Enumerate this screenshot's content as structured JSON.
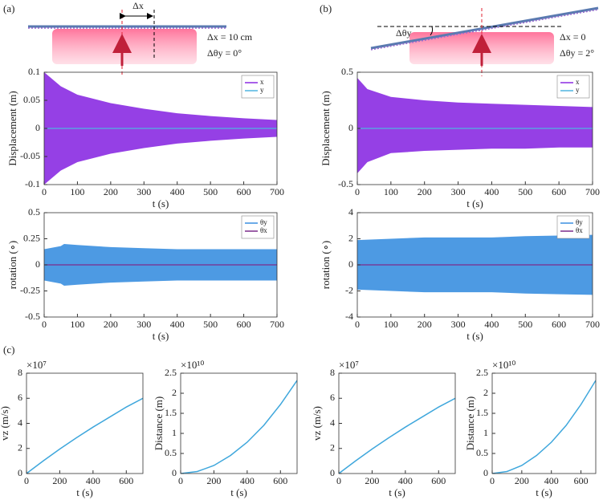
{
  "panels": {
    "a": {
      "label": "(a)",
      "delta": "Δx",
      "line1": "Δx  = 10 cm",
      "line2": "Δθy = 0°"
    },
    "b": {
      "label": "(b)",
      "angle": "Δθy",
      "line1": "Δx  = 0",
      "line2": "Δθy = 2°"
    },
    "c": {
      "label": "(c)"
    }
  },
  "chart_data": [
    {
      "type": "band",
      "ylabel": "Displacement (m)",
      "xlabel": "t (s)",
      "legend": "upper right",
      "x": [
        0,
        50,
        100,
        200,
        300,
        400,
        500,
        600,
        700
      ],
      "xlim": [
        0,
        700
      ],
      "xticks": [
        0,
        100,
        200,
        300,
        400,
        500,
        600,
        700
      ],
      "ylim": [
        -0.1,
        0.1
      ],
      "yticks": [
        -0.1,
        -0.05,
        0,
        0.05,
        0.1
      ],
      "series": [
        {
          "name": "x",
          "color": "#8a2be2",
          "values": [
            0.1,
            0.075,
            0.06,
            0.045,
            0.035,
            0.027,
            0.022,
            0.018,
            0.015
          ],
          "lower": [
            -0.1,
            -0.075,
            -0.06,
            -0.045,
            -0.035,
            -0.027,
            -0.022,
            -0.018,
            -0.015
          ]
        },
        {
          "name": "y",
          "color": "#4fb4e0",
          "values": [
            0,
            0,
            0,
            0,
            0,
            0,
            0,
            0,
            0
          ]
        }
      ]
    },
    {
      "type": "band",
      "ylabel": "Displacement (m)",
      "xlabel": "t (s)",
      "legend": "upper right",
      "x": [
        0,
        30,
        100,
        200,
        300,
        400,
        500,
        600,
        700
      ],
      "xlim": [
        0,
        700
      ],
      "xticks": [
        0,
        100,
        200,
        300,
        400,
        500,
        600,
        700
      ],
      "ylim": [
        -0.5,
        0.5
      ],
      "yticks": [
        -0.5,
        0,
        0.5
      ],
      "series": [
        {
          "name": "x",
          "color": "#8a2be2",
          "values": [
            0.45,
            0.35,
            0.28,
            0.25,
            0.23,
            0.22,
            0.21,
            0.2,
            0.19
          ],
          "lower": [
            -0.4,
            -0.3,
            -0.22,
            -0.2,
            -0.19,
            -0.18,
            -0.18,
            -0.17,
            -0.17
          ]
        },
        {
          "name": "y",
          "color": "#4fb4e0",
          "values": [
            0,
            0,
            0,
            0,
            0,
            0,
            0,
            0,
            0
          ]
        }
      ]
    },
    {
      "type": "band",
      "ylabel": "rotation (∘)",
      "xlabel": "t (s)",
      "legend": "upper right",
      "x": [
        0,
        50,
        60,
        100,
        200,
        300,
        400,
        500,
        600,
        700
      ],
      "xlim": [
        0,
        700
      ],
      "xticks": [
        0,
        100,
        200,
        300,
        400,
        500,
        600,
        700
      ],
      "ylim": [
        -0.5,
        0.5
      ],
      "yticks": [
        -0.5,
        -0.25,
        0,
        0.25,
        0.5
      ],
      "series": [
        {
          "name": "θy",
          "color": "#3a8fe0",
          "values": [
            0.15,
            0.18,
            0.2,
            0.19,
            0.17,
            0.16,
            0.15,
            0.15,
            0.15,
            0.15
          ],
          "lower": [
            -0.15,
            -0.18,
            -0.2,
            -0.19,
            -0.17,
            -0.16,
            -0.15,
            -0.15,
            -0.15,
            -0.15
          ]
        },
        {
          "name": "θx",
          "color": "#7b2a8a",
          "values": [
            0,
            0,
            0,
            0,
            0,
            0,
            0,
            0,
            0,
            0
          ]
        }
      ]
    },
    {
      "type": "band",
      "ylabel": "rotation (∘)",
      "xlabel": "t (s)",
      "legend": "upper right",
      "x": [
        0,
        100,
        200,
        300,
        400,
        500,
        600,
        700
      ],
      "xlim": [
        0,
        700
      ],
      "xticks": [
        0,
        100,
        200,
        300,
        400,
        500,
        600,
        700
      ],
      "ylim": [
        -4,
        4
      ],
      "yticks": [
        -4,
        -2,
        0,
        2,
        4
      ],
      "series": [
        {
          "name": "θy",
          "color": "#3a8fe0",
          "values": [
            1.9,
            2.0,
            2.1,
            2.1,
            2.1,
            2.2,
            2.25,
            2.3
          ],
          "lower": [
            -1.9,
            -2.0,
            -2.1,
            -2.1,
            -2.1,
            -2.2,
            -2.25,
            -2.3
          ]
        },
        {
          "name": "θx",
          "color": "#7b2a8a",
          "values": [
            0,
            0,
            0,
            0,
            0,
            0,
            0,
            0
          ]
        }
      ]
    },
    {
      "type": "line",
      "ylabel": "vz (m/s)",
      "xlabel": "t (s)",
      "multiplier": "×10⁷",
      "x": [
        0,
        100,
        200,
        300,
        400,
        500,
        600,
        700
      ],
      "xlim": [
        0,
        700
      ],
      "xticks": [
        0,
        200,
        400,
        600
      ],
      "ylim": [
        0,
        8
      ],
      "yticks": [
        0,
        2,
        4,
        6,
        8
      ],
      "series": [
        {
          "color": "#3fa7dc",
          "values": [
            0,
            1.0,
            1.95,
            2.85,
            3.7,
            4.5,
            5.3,
            6.0
          ]
        }
      ]
    },
    {
      "type": "line",
      "ylabel": "Distance (m)",
      "xlabel": "t (s)",
      "multiplier": "×10¹⁰",
      "x": [
        0,
        100,
        200,
        300,
        400,
        500,
        600,
        700
      ],
      "xlim": [
        0,
        700
      ],
      "xticks": [
        0,
        200,
        400,
        600
      ],
      "ylim": [
        0,
        2.5
      ],
      "yticks": [
        0,
        0.5,
        1,
        1.5,
        2,
        2.5
      ],
      "series": [
        {
          "color": "#3fa7dc",
          "values": [
            0,
            0.05,
            0.2,
            0.45,
            0.78,
            1.2,
            1.72,
            2.32
          ]
        }
      ]
    },
    {
      "type": "line",
      "ylabel": "vz (m/s)",
      "xlabel": "t (s)",
      "multiplier": "×10⁷",
      "x": [
        0,
        100,
        200,
        300,
        400,
        500,
        600,
        700
      ],
      "xlim": [
        0,
        700
      ],
      "xticks": [
        0,
        200,
        400,
        600
      ],
      "ylim": [
        0,
        8
      ],
      "yticks": [
        0,
        2,
        4,
        6,
        8
      ],
      "series": [
        {
          "color": "#3fa7dc",
          "values": [
            0,
            1.0,
            1.95,
            2.85,
            3.7,
            4.5,
            5.3,
            6.0
          ]
        }
      ]
    },
    {
      "type": "line",
      "ylabel": "Distance (m)",
      "xlabel": "t (s)",
      "multiplier": "×10¹⁰",
      "x": [
        0,
        100,
        200,
        300,
        400,
        500,
        600,
        700
      ],
      "xlim": [
        0,
        700
      ],
      "xticks": [
        0,
        200,
        400,
        600
      ],
      "ylim": [
        0,
        2.5
      ],
      "yticks": [
        0,
        0.5,
        1,
        1.5,
        2,
        2.5
      ],
      "series": [
        {
          "color": "#3fa7dc",
          "values": [
            0,
            0.05,
            0.2,
            0.45,
            0.78,
            1.2,
            1.72,
            2.32
          ]
        }
      ]
    }
  ]
}
